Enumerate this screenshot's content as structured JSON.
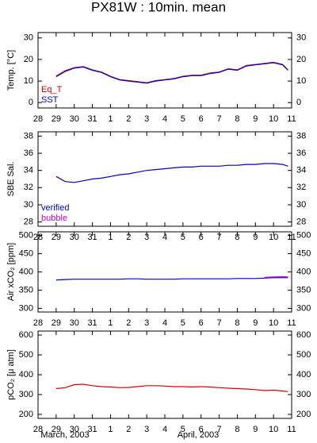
{
  "title": "PX81W : 10min. mean",
  "month_labels": [
    "March, 2003",
    "April, 2003"
  ],
  "chart_data": [
    {
      "type": "line",
      "ylabel": "Temp. [°C]",
      "x": [
        1,
        1.5,
        2,
        2.5,
        3,
        3.5,
        4,
        4.5,
        5,
        5.5,
        6,
        6.5,
        7,
        7.5,
        8,
        8.5,
        9,
        9.5,
        10,
        10.5,
        11,
        11.5,
        12,
        12.5,
        13,
        13.5,
        13.8
      ],
      "xlim": [
        0,
        14
      ],
      "xticks": [
        {
          "value": 0,
          "label": "28"
        },
        {
          "value": 1,
          "label": "29"
        },
        {
          "value": 2,
          "label": "30"
        },
        {
          "value": 3,
          "label": "31"
        },
        {
          "value": 4,
          "label": "1"
        },
        {
          "value": 5,
          "label": "2"
        },
        {
          "value": 6,
          "label": "3"
        },
        {
          "value": 7,
          "label": "4"
        },
        {
          "value": 8,
          "label": "5"
        },
        {
          "value": 9,
          "label": "6"
        },
        {
          "value": 10,
          "label": "7"
        },
        {
          "value": 11,
          "label": "8"
        },
        {
          "value": 12,
          "label": "9"
        },
        {
          "value": 13,
          "label": "10"
        },
        {
          "value": 14,
          "label": "11"
        }
      ],
      "ylim": [
        -2.5,
        32.5
      ],
      "yticks": [
        0,
        10,
        20,
        30
      ],
      "legend": "lower left",
      "series": [
        {
          "name": "Eq_T",
          "color": "#dd0000",
          "values": [
            12.3,
            14.8,
            16.2,
            16.7,
            15.2,
            14.2,
            12.2,
            10.7,
            10.2,
            9.7,
            9.2,
            10.2,
            10.7,
            11.2,
            12.2,
            12.7,
            12.7,
            13.7,
            14.2,
            15.7,
            15.2,
            17.2,
            17.7,
            18.2,
            18.7,
            17.7,
            15.2
          ]
        },
        {
          "name": "SST",
          "color": "#0000cc",
          "values": [
            12,
            14.5,
            16,
            16.5,
            15,
            14,
            12,
            10.5,
            10,
            9.5,
            9,
            10,
            10.5,
            11,
            12,
            12.5,
            12.5,
            13.5,
            14,
            15.5,
            15,
            17,
            17.5,
            18,
            18.5,
            17.5,
            15
          ]
        }
      ]
    },
    {
      "type": "line",
      "ylabel": "SBE Sal.",
      "x": [
        1,
        1.5,
        2,
        2.5,
        3,
        3.5,
        4,
        4.5,
        5,
        5.5,
        6,
        6.5,
        7,
        7.5,
        8,
        8.5,
        9,
        9.5,
        10,
        10.5,
        11,
        11.5,
        12,
        12.5,
        13,
        13.5,
        13.8
      ],
      "xlim": [
        0,
        14
      ],
      "xticks": [
        {
          "value": 0,
          "label": "28"
        },
        {
          "value": 1,
          "label": "29"
        },
        {
          "value": 2,
          "label": "30"
        },
        {
          "value": 3,
          "label": "31"
        },
        {
          "value": 4,
          "label": "1"
        },
        {
          "value": 5,
          "label": "2"
        },
        {
          "value": 6,
          "label": "3"
        },
        {
          "value": 7,
          "label": "4"
        },
        {
          "value": 8,
          "label": "5"
        },
        {
          "value": 9,
          "label": "6"
        },
        {
          "value": 10,
          "label": "7"
        },
        {
          "value": 11,
          "label": "8"
        },
        {
          "value": 12,
          "label": "9"
        },
        {
          "value": 13,
          "label": "10"
        },
        {
          "value": 14,
          "label": "11"
        }
      ],
      "ylim": [
        27.5,
        38.5
      ],
      "yticks": [
        28,
        30,
        32,
        34,
        36,
        38
      ],
      "legend": "lower left",
      "series": [
        {
          "name": "verified",
          "color": "#0000cc",
          "values": [
            33.3,
            32.7,
            32.6,
            32.8,
            33,
            33.1,
            33.3,
            33.5,
            33.6,
            33.8,
            34,
            34.1,
            34.2,
            34.3,
            34.4,
            34.4,
            34.5,
            34.5,
            34.5,
            34.6,
            34.6,
            34.7,
            34.7,
            34.8,
            34.8,
            34.7,
            34.5
          ]
        },
        {
          "name": "bubble",
          "color": "#cc00cc",
          "values": [
            null,
            null,
            null,
            null,
            null,
            null,
            null,
            null,
            null,
            null,
            null,
            null,
            null,
            null,
            null,
            null,
            null,
            null,
            null,
            null,
            null,
            null,
            null,
            null,
            null,
            null,
            null
          ]
        }
      ]
    },
    {
      "type": "line",
      "ylabel": "Air xCO₂ [ppm]",
      "x": [
        1,
        1.5,
        2,
        2.5,
        3,
        3.5,
        4,
        4.5,
        5,
        5.5,
        6,
        6.5,
        7,
        7.5,
        8,
        8.5,
        9,
        9.5,
        10,
        10.5,
        11,
        11.5,
        12,
        12.5,
        13,
        13.5,
        13.8
      ],
      "xlim": [
        0,
        14
      ],
      "xticks": [
        {
          "value": 0,
          "label": "28"
        },
        {
          "value": 1,
          "label": "29"
        },
        {
          "value": 2,
          "label": "30"
        },
        {
          "value": 3,
          "label": "31"
        },
        {
          "value": 4,
          "label": "1"
        },
        {
          "value": 5,
          "label": "2"
        },
        {
          "value": 6,
          "label": "3"
        },
        {
          "value": 7,
          "label": "4"
        },
        {
          "value": 8,
          "label": "5"
        },
        {
          "value": 9,
          "label": "6"
        },
        {
          "value": 10,
          "label": "7"
        },
        {
          "value": 11,
          "label": "8"
        },
        {
          "value": 12,
          "label": "9"
        },
        {
          "value": 13,
          "label": "10"
        },
        {
          "value": 14,
          "label": "11"
        }
      ],
      "ylim": [
        290,
        510
      ],
      "yticks": [
        300,
        350,
        400,
        450,
        500
      ],
      "series": [
        {
          "color": "#0000cc",
          "values": [
            378,
            379,
            380,
            380,
            380,
            380,
            380,
            380,
            381,
            381,
            380,
            380,
            380,
            380,
            381,
            381,
            381,
            381,
            381,
            381,
            382,
            382,
            382,
            383,
            384,
            384,
            384
          ]
        },
        {
          "color": "#cc00cc",
          "values": [
            null,
            null,
            null,
            null,
            null,
            null,
            null,
            null,
            null,
            null,
            null,
            null,
            null,
            null,
            null,
            null,
            null,
            null,
            null,
            null,
            null,
            null,
            null,
            385,
            386,
            387,
            386
          ]
        }
      ]
    },
    {
      "type": "line",
      "ylabel": "pCO₂ [μ atm]",
      "x": [
        1,
        1.5,
        2,
        2.5,
        3,
        3.5,
        4,
        4.5,
        5,
        5.5,
        6,
        6.5,
        7,
        7.5,
        8,
        8.5,
        9,
        9.5,
        10,
        10.5,
        11,
        11.5,
        12,
        12.5,
        13,
        13.5,
        13.8
      ],
      "xlim": [
        0,
        14
      ],
      "xticks": [
        {
          "value": 0,
          "label": "28"
        },
        {
          "value": 1,
          "label": "29"
        },
        {
          "value": 2,
          "label": "30"
        },
        {
          "value": 3,
          "label": "31"
        },
        {
          "value": 4,
          "label": "1"
        },
        {
          "value": 5,
          "label": "2"
        },
        {
          "value": 6,
          "label": "3"
        },
        {
          "value": 7,
          "label": "4"
        },
        {
          "value": 8,
          "label": "5"
        },
        {
          "value": 9,
          "label": "6"
        },
        {
          "value": 10,
          "label": "7"
        },
        {
          "value": 11,
          "label": "8"
        },
        {
          "value": 12,
          "label": "9"
        },
        {
          "value": 13,
          "label": "10"
        },
        {
          "value": 14,
          "label": "11"
        }
      ],
      "ylim": [
        180,
        620
      ],
      "yticks": [
        200,
        300,
        400,
        500,
        600
      ],
      "series": [
        {
          "color": "#dd0000",
          "values": [
            330,
            335,
            350,
            352,
            345,
            340,
            338,
            335,
            336,
            340,
            345,
            345,
            343,
            340,
            340,
            338,
            340,
            338,
            335,
            332,
            330,
            328,
            325,
            320,
            322,
            318,
            315
          ]
        }
      ]
    }
  ]
}
